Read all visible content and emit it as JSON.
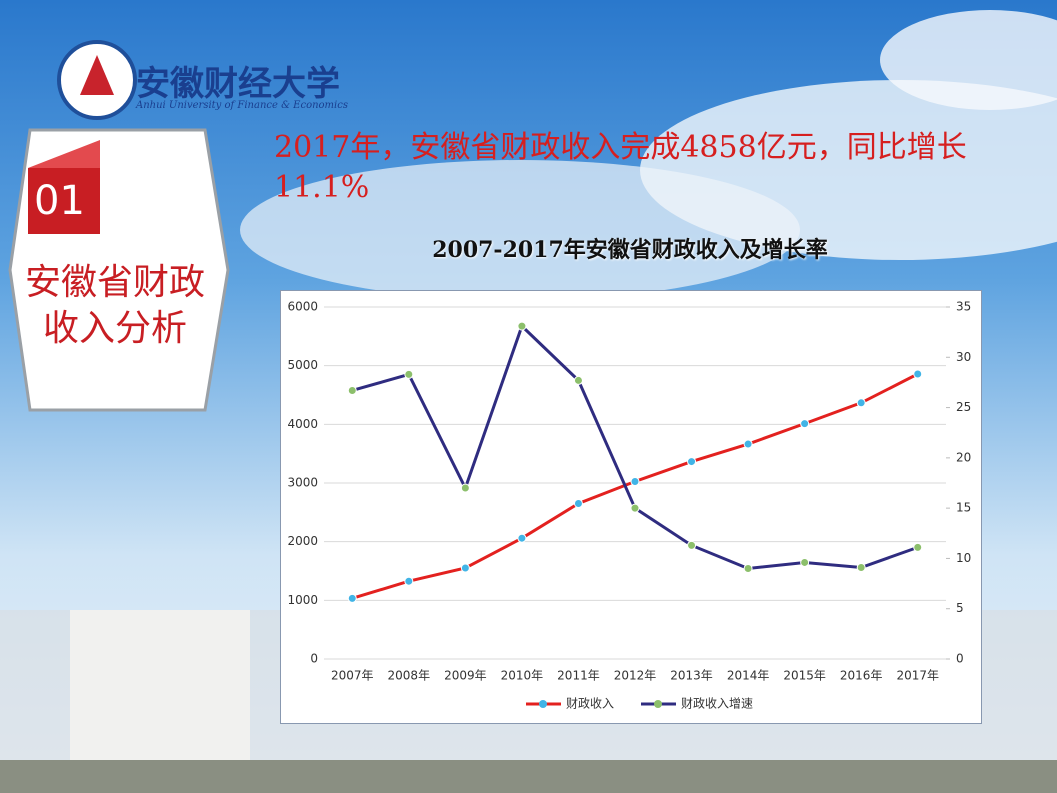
{
  "logo": {
    "name_cn": "安徽财经大学",
    "name_en": "Anhui University of Finance & Economics"
  },
  "section": {
    "number": "01",
    "title_lines": [
      "安徽省财政",
      "收入分析"
    ]
  },
  "headline": "2017年，安徽省财政收入完成4858亿元，同比增长11.1%",
  "chart_data": {
    "type": "line",
    "title": "2007-2017年安徽省财政收入及增长率",
    "categories": [
      "2007年",
      "2008年",
      "2009年",
      "2010年",
      "2011年",
      "2012年",
      "2013年",
      "2014年",
      "2015年",
      "2016年",
      "2017年"
    ],
    "series": [
      {
        "name": "财政收入",
        "color": "#e3211f",
        "marker_color": "#41b4e6",
        "values": [
          1034,
          1326,
          1551,
          2059,
          2651,
          3026,
          3365,
          3664,
          4012,
          4367,
          4858
        ]
      },
      {
        "name": "财政收入增速",
        "color": "#2f2c80",
        "marker_color": "#8cbf6b",
        "axis": "y2",
        "values": [
          26.7,
          28.3,
          17.0,
          33.1,
          27.7,
          15.0,
          11.3,
          9.0,
          9.6,
          9.1,
          11.1
        ]
      }
    ],
    "ylim": [
      0,
      6000
    ],
    "yticks": [
      0,
      1000,
      2000,
      3000,
      4000,
      5000,
      6000
    ],
    "y2lim": [
      0,
      35
    ],
    "y2ticks": [
      0,
      5,
      10,
      15,
      20,
      25,
      30,
      35
    ],
    "grid": true,
    "legend": "bottom"
  }
}
